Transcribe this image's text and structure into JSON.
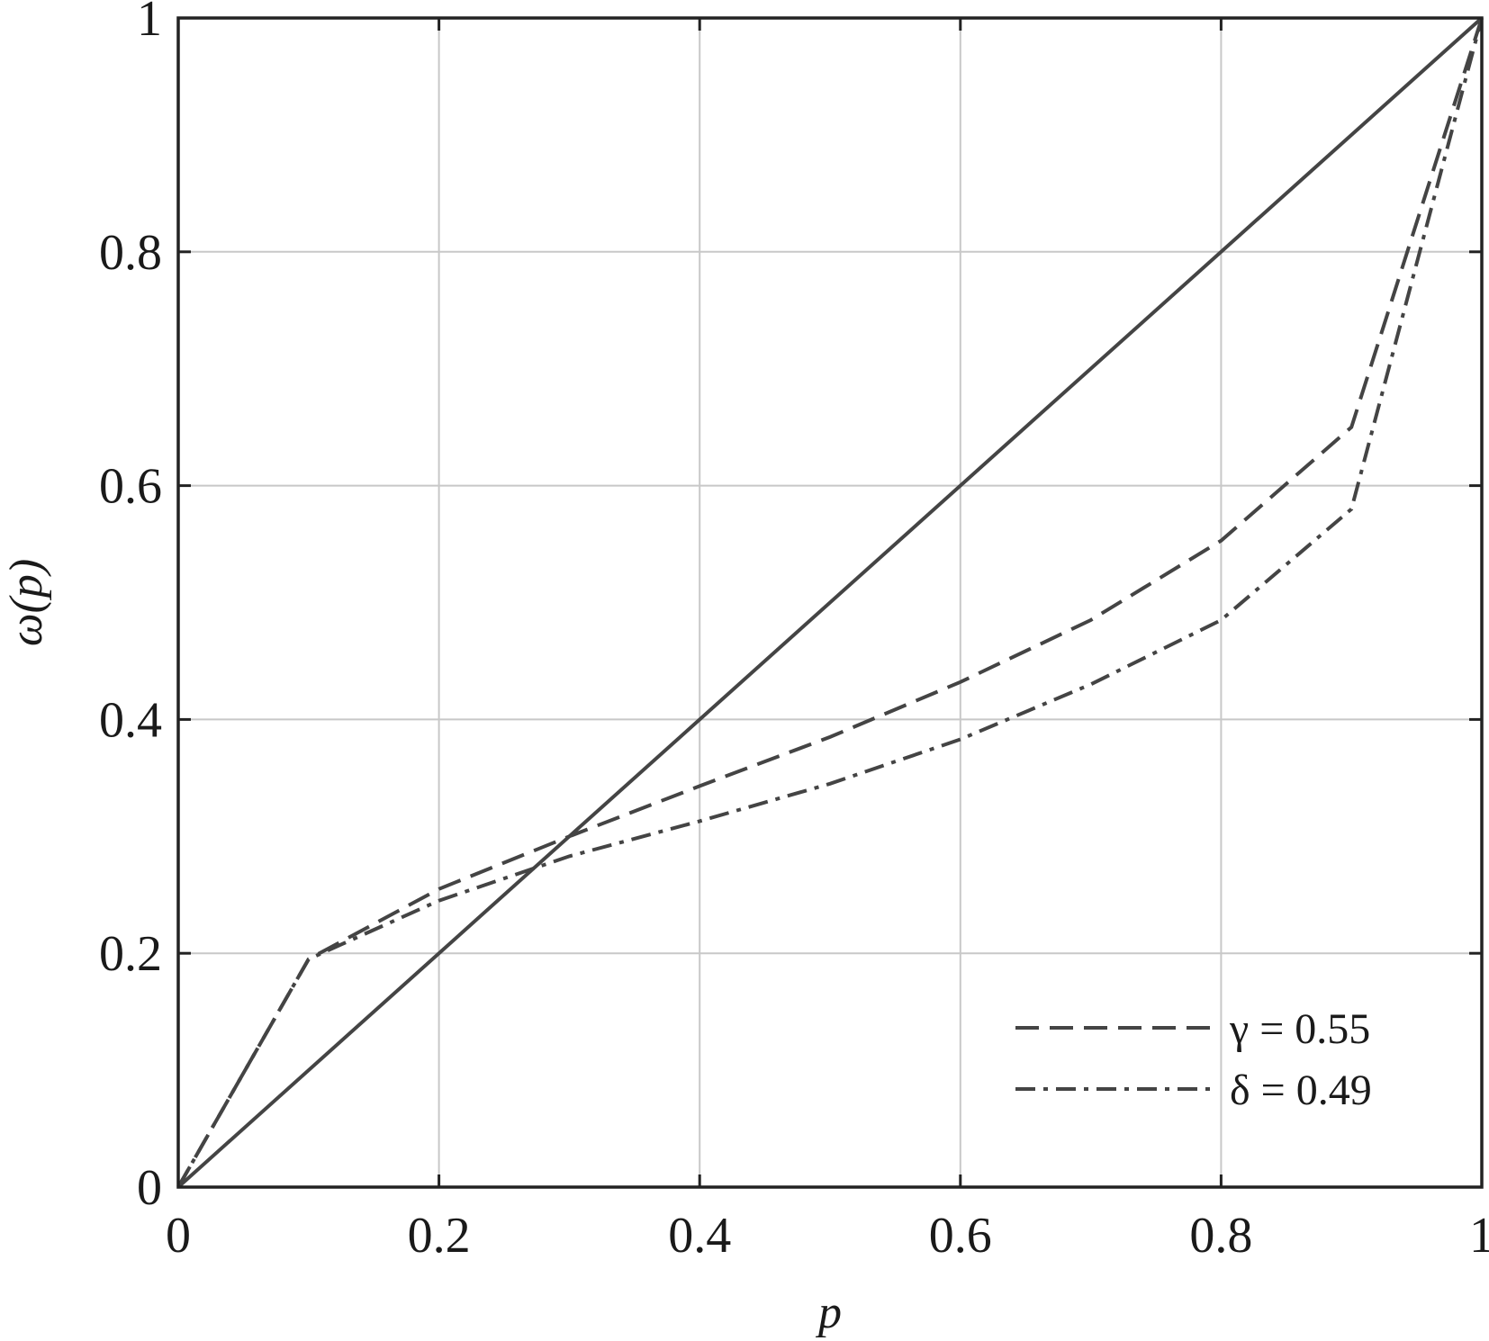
{
  "chart_data": {
    "type": "line",
    "xlabel": "p",
    "ylabel": "ω(p)",
    "xlim": [
      0,
      1
    ],
    "ylim": [
      0,
      1
    ],
    "grid": true,
    "legend_position": "bottom-right",
    "x_ticks": [
      "0",
      "0.2",
      "0.4",
      "0.6",
      "0.8",
      "1"
    ],
    "y_ticks": [
      "0",
      "0.2",
      "0.4",
      "0.6",
      "0.8",
      "1"
    ],
    "series": [
      {
        "style": "solid",
        "x": [
          0,
          1
        ],
        "y": [
          0,
          1
        ]
      },
      {
        "name": "γ = 0.55",
        "style": "dashed",
        "x": [
          0,
          0.1,
          0.2,
          0.3,
          0.4,
          0.5,
          0.6,
          0.7,
          0.8,
          0.9,
          1.0
        ],
        "y": [
          0,
          0.195,
          0.255,
          0.3,
          0.343,
          0.385,
          0.432,
          0.485,
          0.553,
          0.65,
          1.0
        ]
      },
      {
        "name": "δ = 0.49",
        "style": "dash-dot",
        "x": [
          0,
          0.1,
          0.2,
          0.3,
          0.4,
          0.5,
          0.6,
          0.7,
          0.8,
          0.9,
          1.0
        ],
        "y": [
          0,
          0.195,
          0.245,
          0.283,
          0.313,
          0.345,
          0.383,
          0.43,
          0.485,
          0.58,
          1.0
        ]
      }
    ]
  },
  "colors": {
    "line": "#444444",
    "grid": "#c8c8c8",
    "frame": "#222222"
  }
}
